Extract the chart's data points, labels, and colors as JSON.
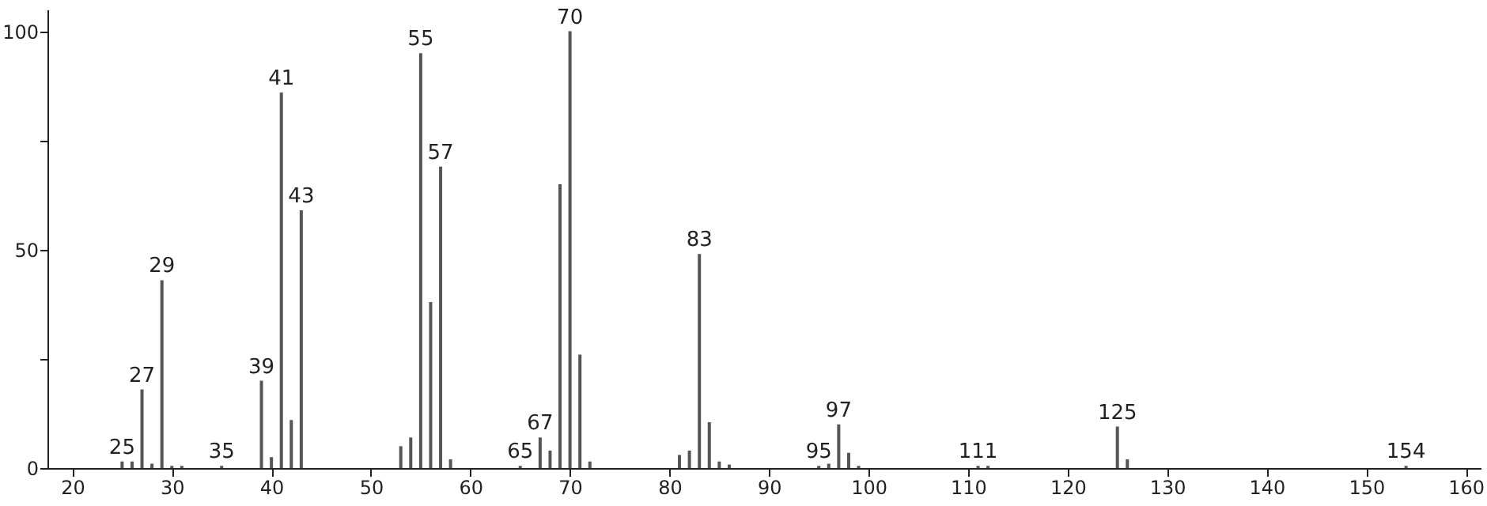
{
  "chart_data": {
    "type": "bar",
    "color": "#555555",
    "x": [
      25,
      26,
      27,
      28,
      29,
      30,
      31,
      35,
      39,
      40,
      41,
      42,
      43,
      53,
      54,
      55,
      56,
      57,
      58,
      65,
      67,
      68,
      69,
      70,
      71,
      72,
      81,
      82,
      83,
      84,
      85,
      86,
      95,
      96,
      97,
      98,
      99,
      111,
      112,
      125,
      126,
      154
    ],
    "values": [
      1.5,
      1.5,
      18,
      1,
      43,
      0.5,
      0.5,
      0.5,
      20,
      2.5,
      86,
      11,
      59,
      5,
      7,
      95,
      38,
      69,
      2,
      0.5,
      7,
      4,
      65,
      100,
      26,
      1.5,
      3,
      4,
      49,
      10.5,
      1.5,
      0.8,
      0.5,
      1,
      10,
      3.5,
      0.5,
      0.5,
      0.5,
      9.5,
      2,
      0.5
    ],
    "xlim": [
      17.5,
      161.5
    ],
    "ylim": [
      0,
      105
    ],
    "xticks": [
      20,
      30,
      40,
      50,
      60,
      70,
      80,
      90,
      100,
      110,
      120,
      130,
      140,
      150,
      160
    ],
    "yticks": [
      0,
      {
        "value": 25,
        "label": null
      },
      50,
      {
        "value": 75,
        "label": null
      },
      100
    ],
    "grid": false,
    "annotations": [
      {
        "text": "25",
        "x": 25,
        "y": 1.5
      },
      {
        "text": "27",
        "x": 27,
        "y": 18
      },
      {
        "text": "29",
        "x": 29,
        "y": 43
      },
      {
        "text": "35",
        "x": 35,
        "y": 0.5
      },
      {
        "text": "39",
        "x": 39,
        "y": 20
      },
      {
        "text": "41",
        "x": 41,
        "y": 86
      },
      {
        "text": "43",
        "x": 43,
        "y": 59
      },
      {
        "text": "55",
        "x": 55,
        "y": 95
      },
      {
        "text": "57",
        "x": 57,
        "y": 69
      },
      {
        "text": "65",
        "x": 65,
        "y": 0.5
      },
      {
        "text": "67",
        "x": 67,
        "y": 7
      },
      {
        "text": "70",
        "x": 70,
        "y": 100
      },
      {
        "text": "83",
        "x": 83,
        "y": 49
      },
      {
        "text": "95",
        "x": 95,
        "y": 0.5
      },
      {
        "text": "97",
        "x": 97,
        "y": 10
      },
      {
        "text": "111",
        "x": 111,
        "y": 0.5
      },
      {
        "text": "125",
        "x": 125,
        "y": 9.5
      },
      {
        "text": "154",
        "x": 154,
        "y": 0.5
      }
    ]
  }
}
